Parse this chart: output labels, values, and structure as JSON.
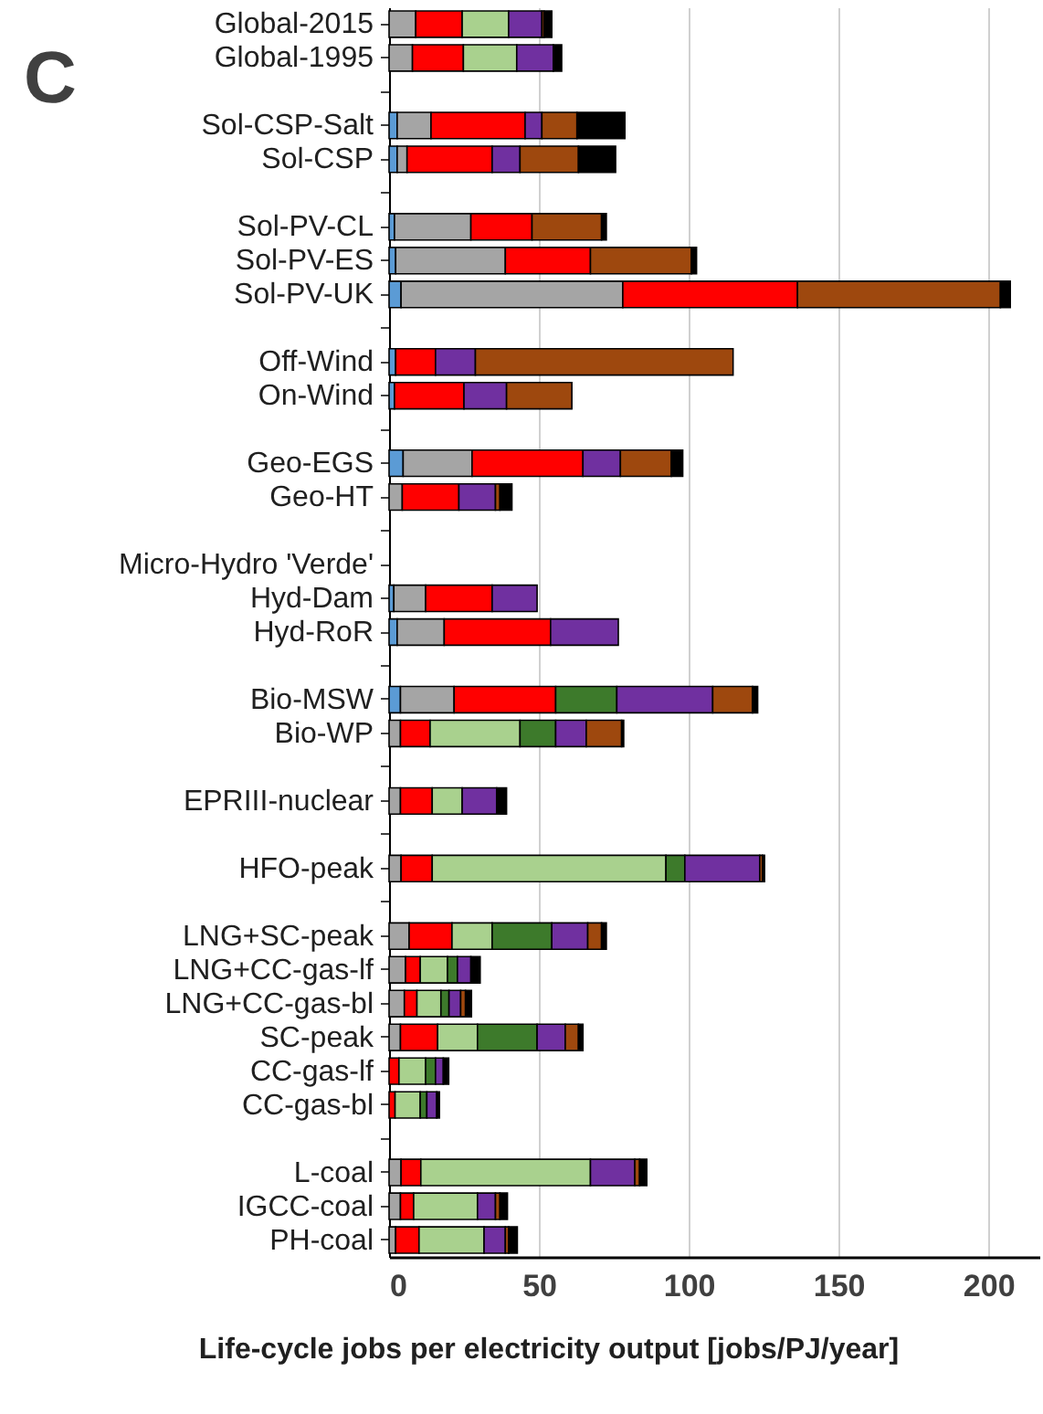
{
  "chart_data": {
    "type": "bar",
    "orientation": "horizontal",
    "stacked": true,
    "xlabel": "Life-cycle jobs per electricity output  [jobs/PJ/year]",
    "annotations": [
      "C"
    ],
    "categories": [
      "Global-2015",
      "Global-1995",
      null,
      "Sol-CSP-Salt",
      "Sol-CSP",
      null,
      "Sol-PV-CL",
      "Sol-PV-ES",
      "Sol-PV-UK",
      null,
      "Off-Wind",
      "On-Wind",
      null,
      "Geo-EGS",
      "Geo-HT",
      null,
      "Micro-Hydro 'Verde'",
      "Hyd-Dam",
      "Hyd-RoR",
      null,
      "Bio-MSW",
      "Bio-WP",
      null,
      "EPRIII-nuclear",
      null,
      "HFO-peak",
      null,
      "LNG+SC-peak",
      "LNG+CC-gas-lf",
      "LNG+CC-gas-bl",
      "SC-peak",
      "CC-gas-lf",
      "CC-gas-bl",
      null,
      "L-coal",
      "IGCC-coal",
      "PH-coal"
    ],
    "series": [
      {
        "color": "#5b9bd5",
        "values": [
          null,
          null,
          null,
          2.7,
          2.7,
          null,
          1.8,
          2.2,
          4,
          null,
          2.2,
          1.8,
          null,
          4.7,
          null,
          null,
          null,
          1.6,
          2.7,
          null,
          3.8,
          null,
          null,
          null,
          null,
          null,
          null,
          null,
          null,
          null,
          null,
          null,
          null,
          null,
          null,
          null,
          null
        ]
      },
      {
        "color": "#a5a5a5",
        "values": [
          8.9,
          7.8,
          null,
          11.3,
          3.3,
          null,
          25.5,
          36.6,
          74,
          null,
          null,
          null,
          null,
          23,
          4.4,
          null,
          null,
          10.6,
          15.7,
          null,
          17.9,
          3.8,
          null,
          3.8,
          null,
          4,
          null,
          6.7,
          5.5,
          5.1,
          3.8,
          null,
          null,
          null,
          4,
          3.8,
          2.2
        ]
      },
      {
        "color": "#ff0000",
        "values": [
          15.5,
          17,
          null,
          31.4,
          28.4,
          null,
          20.4,
          28.4,
          58.3,
          null,
          13.3,
          23.2,
          null,
          37,
          18.9,
          null,
          null,
          22.2,
          35.5,
          null,
          33.9,
          9.9,
          null,
          10.6,
          null,
          10.4,
          null,
          14.3,
          4.9,
          4.2,
          12.4,
          3.3,
          2,
          null,
          6.6,
          4.4,
          7.8
        ]
      },
      {
        "color": "#a9d18e",
        "values": [
          15.5,
          17.8,
          null,
          null,
          null,
          null,
          null,
          null,
          null,
          null,
          null,
          null,
          null,
          null,
          null,
          null,
          null,
          null,
          null,
          null,
          null,
          30,
          null,
          10,
          null,
          78,
          null,
          13.4,
          9.1,
          8,
          13.3,
          8.9,
          8.4,
          null,
          56.6,
          21.3,
          21.7
        ]
      },
      {
        "color": "#3d7a2b",
        "values": [
          null,
          null,
          null,
          null,
          null,
          null,
          null,
          null,
          null,
          null,
          null,
          null,
          null,
          null,
          null,
          null,
          null,
          null,
          null,
          null,
          20.4,
          11.9,
          null,
          null,
          null,
          6.3,
          null,
          19.9,
          3.3,
          2.7,
          19.9,
          3.3,
          2.2,
          null,
          null,
          null,
          null
        ]
      },
      {
        "color": "#7030a0",
        "values": [
          11.1,
          12.2,
          null,
          5.6,
          9.3,
          null,
          null,
          null,
          null,
          null,
          13.3,
          14.2,
          null,
          12.5,
          12.2,
          null,
          null,
          15,
          22.6,
          null,
          32,
          10.2,
          null,
          11.5,
          null,
          25,
          null,
          12,
          4.5,
          3.9,
          9.4,
          2.6,
          3.3,
          null,
          14.8,
          6,
          7.1
        ]
      },
      {
        "color": "#9e480e",
        "values": [
          0.7,
          null,
          null,
          11.7,
          19.5,
          null,
          23.2,
          33.7,
          67.7,
          null,
          86,
          21.8,
          null,
          17,
          1.5,
          null,
          null,
          null,
          null,
          null,
          13.3,
          11.8,
          null,
          null,
          null,
          0.9,
          null,
          4.6,
          null,
          1.6,
          4.4,
          null,
          null,
          null,
          1.6,
          1.5,
          1.1
        ]
      },
      {
        "color": "#000000",
        "values": [
          2.6,
          2.8,
          null,
          16,
          12.4,
          null,
          1.6,
          1.7,
          3.3,
          null,
          null,
          null,
          null,
          3.8,
          4,
          null,
          null,
          null,
          null,
          null,
          1.7,
          0.7,
          null,
          3.3,
          null,
          0.7,
          null,
          1.6,
          3.1,
          2,
          1.5,
          1.8,
          0.9,
          null,
          2.4,
          2.5,
          2.9
        ]
      }
    ],
    "xlim": [
      0,
      217
    ],
    "xticks": [
      0,
      50,
      100,
      150,
      200
    ],
    "grid": "x"
  }
}
